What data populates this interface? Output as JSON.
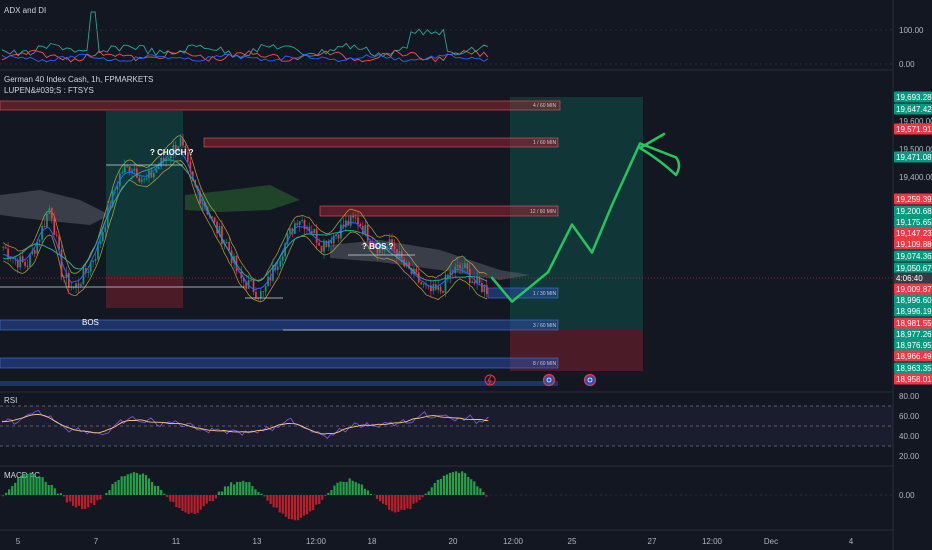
{
  "panes": {
    "adx": {
      "title": "ADX and DI",
      "ticks": [
        "100.00",
        "0.00"
      ]
    },
    "main": {
      "title": "German 40 Index Cash, 1h, FPMARKETS",
      "subtitle": "LUPEN&#039;S : FTSYS",
      "labels": {
        "choch": "? CHOCH ?",
        "bos_top": "? BOS ?",
        "bos_left": "BOS"
      },
      "zones": [
        {
          "label": "4 / 60 MIN",
          "color": "#b22833"
        },
        {
          "label": "1 / 60 MIN",
          "color": "#b22833"
        },
        {
          "label": "12 / 60 MIN",
          "color": "#b22833"
        },
        {
          "label": "1 / 30 MIN",
          "color": "#2a4fb0"
        },
        {
          "label": "3 / 60 MIN",
          "color": "#2a4fb0"
        },
        {
          "label": "8 / 60 MIN",
          "color": "#2a4fb0"
        }
      ]
    },
    "rsi": {
      "title": "RSI",
      "ticks": [
        "80.00",
        "60.00",
        "40.00",
        "20.00"
      ]
    },
    "macd": {
      "title": "MACD 4C",
      "ticks": [
        "0.00"
      ]
    }
  },
  "price_axis": {
    "ticks": [
      "19,600.00",
      "19,500.00",
      "19,400.00"
    ],
    "tags": [
      {
        "text": "19,693.28",
        "color": "#089981"
      },
      {
        "text": "19,647.42",
        "color": "#089981"
      },
      {
        "text": "19,571.91",
        "color": "#f23645"
      },
      {
        "text": "19,471.08",
        "color": "#089981"
      },
      {
        "text": "19,259.39",
        "color": "#f23645"
      },
      {
        "text": "19,200.68",
        "color": "#089981"
      },
      {
        "text": "19,175.65",
        "color": "#089981"
      },
      {
        "text": "19,147.23",
        "color": "#f23645"
      },
      {
        "text": "19,109.88",
        "color": "#f23645"
      },
      {
        "text": "19,074.36",
        "color": "#089981"
      },
      {
        "text": "19,050.67",
        "color": "#089981"
      },
      {
        "text": "4:06:40",
        "color": "#363a45"
      },
      {
        "text": "19,009.87",
        "color": "#f23645"
      },
      {
        "text": "18,996.60",
        "color": "#089981"
      },
      {
        "text": "18,996.19",
        "color": "#089981"
      },
      {
        "text": "18,981.55",
        "color": "#f23645"
      },
      {
        "text": "18,977.26",
        "color": "#089981"
      },
      {
        "text": "18,976.95",
        "color": "#089981"
      },
      {
        "text": "18,966.49",
        "color": "#f23645"
      },
      {
        "text": "18,963.35",
        "color": "#089981"
      },
      {
        "text": "18,958.01",
        "color": "#f23645"
      }
    ]
  },
  "time_axis": [
    "5",
    "7",
    "11",
    "13",
    "12:00",
    "18",
    "20",
    "12:00",
    "25",
    "27",
    "12:00",
    "Dec",
    "4"
  ],
  "colors": {
    "up": "#089981",
    "down": "#f23645",
    "drawing": "#22c55e",
    "bg": "#131722"
  },
  "chart_data": {
    "type": "candlestick",
    "title": "German 40 Index Cash, 1h, FPMARKETS",
    "close_path": [
      19150,
      19105,
      19085,
      19180,
      19300,
      19050,
      19000,
      19060,
      19140,
      19300,
      19420,
      19440,
      19380,
      19430,
      19480,
      19530,
      19380,
      19310,
      19220,
      19160,
      19040,
      19010,
      18975,
      19080,
      19170,
      19260,
      19220,
      19160,
      19190,
      19230,
      19250,
      19190,
      19140,
      19160,
      19080,
      19040,
      18990,
      18990,
      19060,
      19080,
      19020,
      19000
    ],
    "projection": [
      19040,
      18955,
      19060,
      19230,
      19130,
      19300,
      19520,
      19470
    ]
  }
}
